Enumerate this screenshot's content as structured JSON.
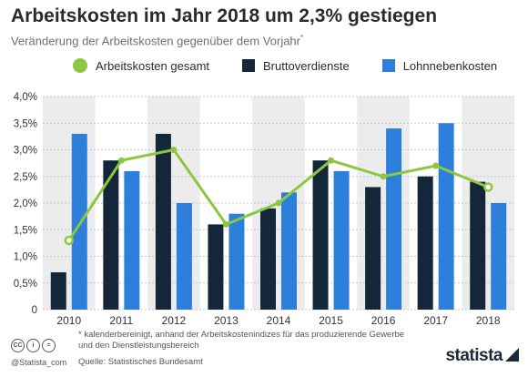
{
  "header": {
    "title": "Arbeitskosten im Jahr 2018 um 2,3% gestiegen",
    "subtitle": "Veränderung der Arbeitskosten gegenüber dem Vorjahr",
    "subtitle_marker": "*"
  },
  "colors": {
    "line": "#8dc63f",
    "dark_bar": "#14273a",
    "light_bar": "#2d7fdc",
    "band": "#ececec"
  },
  "chart_data": {
    "type": "bar",
    "categories": [
      "2010",
      "2011",
      "2012",
      "2013",
      "2014",
      "2015",
      "2016",
      "2017",
      "2018"
    ],
    "series": [
      {
        "name": "Arbeitskosten gesamt",
        "kind": "line",
        "values": [
          1.3,
          2.8,
          3.0,
          1.6,
          2.0,
          2.8,
          2.5,
          2.7,
          2.3
        ]
      },
      {
        "name": "Bruttoverdienste",
        "kind": "bar",
        "values": [
          0.7,
          2.8,
          3.3,
          1.6,
          1.9,
          2.8,
          2.3,
          2.5,
          2.4
        ]
      },
      {
        "name": "Lohnnebenkosten",
        "kind": "bar",
        "values": [
          3.3,
          2.6,
          2.0,
          1.8,
          2.2,
          2.6,
          3.4,
          3.5,
          2.0
        ]
      }
    ],
    "ylim": [
      0,
      4
    ],
    "yticks": [
      "0",
      "0,5%",
      "1,0%",
      "1,5%",
      "2,0%",
      "2,5%",
      "3,0%",
      "3,5%",
      "4,0%"
    ],
    "grid": true,
    "legend": "top"
  },
  "footer": {
    "footnote_marker": "*",
    "footnote": "kalenderbereinigt, anhand der Arbeitskostenindizes für das produzierende Gewerbe und den Dienstleistungsbereich",
    "source": "Quelle: Statistisches Bundesamt",
    "handle": "@Statista_com",
    "cc_icons": [
      "CC",
      "i",
      "="
    ],
    "brand": "statista"
  }
}
